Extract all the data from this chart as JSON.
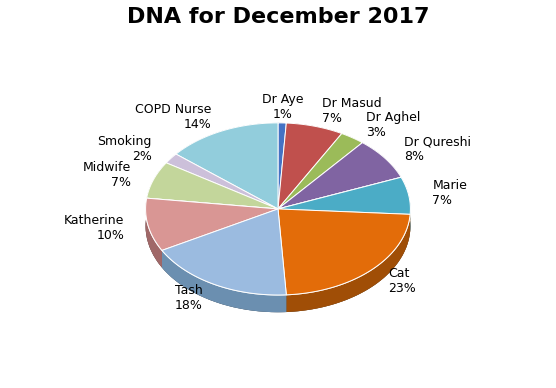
{
  "title": "DNA for December 2017",
  "labels": [
    "Dr Aye",
    "Dr Masud",
    "Dr Aghel",
    "Dr Qureshi",
    "Marie",
    "Cat",
    "Tash",
    "Katherine",
    "Midwife",
    "Smoking",
    "COPD Nurse"
  ],
  "values": [
    1,
    7,
    3,
    8,
    7,
    23,
    18,
    10,
    7,
    2,
    14
  ],
  "colors": [
    "#4472C4",
    "#C0504D",
    "#9BBB59",
    "#8064A2",
    "#4BACC6",
    "#E36C09",
    "#9BBBE0",
    "#D99694",
    "#C3D69B",
    "#CCC0DA",
    "#92CDDC"
  ],
  "dark_colors": [
    "#2F4F8F",
    "#8B3A3A",
    "#6B8C3A",
    "#5C4870",
    "#2F7A8F",
    "#A04E06",
    "#6B8FB0",
    "#A06868",
    "#8BAD6B",
    "#9A8FAD",
    "#5A9AAD"
  ],
  "startangle": 90,
  "title_fontsize": 16,
  "label_fontsize": 9,
  "depth": 0.08,
  "figsize": [
    5.56,
    3.88
  ],
  "dpi": 100
}
